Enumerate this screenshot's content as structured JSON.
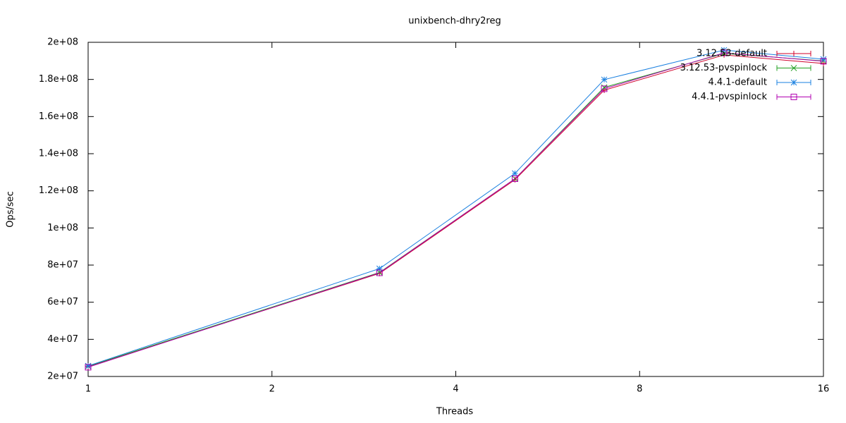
{
  "chart_data": {
    "type": "line",
    "title": "unixbench-dhry2reg",
    "x_label": "Threads",
    "y_label": "Ops/sec",
    "x": [
      1,
      3,
      5,
      7,
      11,
      16
    ],
    "xlim": [
      1,
      16
    ],
    "xticks": [
      1,
      2,
      4,
      8,
      16
    ],
    "x_log_base": 2,
    "ylim": [
      20000000,
      200000000
    ],
    "yticks": [
      {
        "value": 20000000,
        "label": "2e+07"
      },
      {
        "value": 40000000,
        "label": "4e+07"
      },
      {
        "value": 60000000,
        "label": "6e+07"
      },
      {
        "value": 80000000,
        "label": "8e+07"
      },
      {
        "value": 100000000,
        "label": "1e+08"
      },
      {
        "value": 120000000,
        "label": "1.2e+08"
      },
      {
        "value": 140000000,
        "label": "1.4e+08"
      },
      {
        "value": 160000000,
        "label": "1.6e+08"
      },
      {
        "value": 180000000,
        "label": "1.8e+08"
      },
      {
        "value": 200000000,
        "label": "2e+08"
      }
    ],
    "grid": false,
    "legend": "top-right",
    "series": [
      {
        "name": "3.12.53-default",
        "color": "#d0002a",
        "marker": "plus",
        "values": [
          25300000,
          75500000,
          126000000,
          174200000,
          193200000,
          188600000
        ]
      },
      {
        "name": "3.12.53-pvspinlock",
        "color": "#22a022",
        "marker": "cross",
        "values": [
          25500000,
          76000000,
          126500000,
          175700000,
          194000000,
          190000000
        ]
      },
      {
        "name": "4.4.1-default",
        "color": "#1a80e0",
        "marker": "star",
        "values": [
          25700000,
          78100000,
          129400000,
          179900000,
          195800000,
          190900000
        ]
      },
      {
        "name": "4.4.1-pvspinlock",
        "color": "#b000b0",
        "marker": "square",
        "values": [
          25000000,
          75800000,
          126500000,
          175000000,
          194300000,
          189800000
        ]
      }
    ]
  }
}
